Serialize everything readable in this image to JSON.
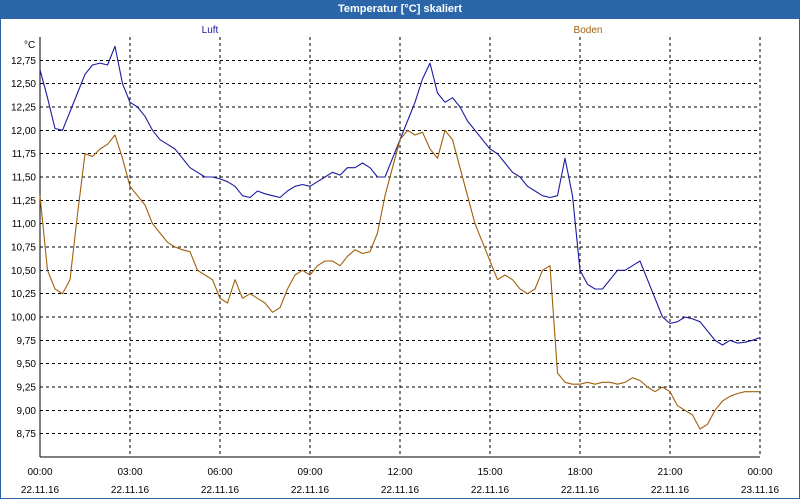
{
  "window": {
    "title": "Temperatur [°C] skaliert"
  },
  "chart_data": {
    "type": "line",
    "title": "Temperatur [°C] skaliert",
    "ylabel": "°C",
    "xlabel": "",
    "ylim": [
      8.5,
      13.0
    ],
    "xlim": [
      0,
      24
    ],
    "y_ticks": [
      8.75,
      9.0,
      9.25,
      9.5,
      9.75,
      10.0,
      10.25,
      10.5,
      10.75,
      11.0,
      11.25,
      11.5,
      11.75,
      12.0,
      12.25,
      12.5,
      12.75
    ],
    "y_tick_labels": [
      "8,75",
      "9,00",
      "9,25",
      "9,50",
      "9,75",
      "10,00",
      "10,25",
      "10,50",
      "10,75",
      "11,00",
      "11,25",
      "11,50",
      "11,75",
      "12,00",
      "12,25",
      "12,50",
      "12,75"
    ],
    "x_ticks": [
      {
        "x": 0,
        "time": "00:00",
        "date": "22.11.16"
      },
      {
        "x": 3,
        "time": "03:00",
        "date": "22.11.16"
      },
      {
        "x": 6,
        "time": "06:00",
        "date": "22.11.16"
      },
      {
        "x": 9,
        "time": "09:00",
        "date": "22.11.16"
      },
      {
        "x": 12,
        "time": "12:00",
        "date": "22.11.16"
      },
      {
        "x": 15,
        "time": "15:00",
        "date": "22.11.16"
      },
      {
        "x": 18,
        "time": "18:00",
        "date": "22.11.16"
      },
      {
        "x": 21,
        "time": "21:00",
        "date": "22.11.16"
      },
      {
        "x": 24,
        "time": "00:00",
        "date": "23.11.16"
      }
    ],
    "grid": true,
    "legend_placement": "top",
    "series": [
      {
        "name": "Luft",
        "color": "#1a1aa0",
        "x": [
          0,
          0.25,
          0.5,
          0.75,
          1,
          1.25,
          1.5,
          1.75,
          2,
          2.25,
          2.5,
          2.75,
          3,
          3.25,
          3.5,
          3.75,
          4,
          4.25,
          4.5,
          4.75,
          5,
          5.25,
          5.5,
          5.75,
          6,
          6.25,
          6.5,
          6.75,
          7,
          7.25,
          7.5,
          7.75,
          8,
          8.25,
          8.5,
          8.75,
          9,
          9.25,
          9.5,
          9.75,
          10,
          10.25,
          10.5,
          10.75,
          11,
          11.25,
          11.5,
          11.75,
          12,
          12.25,
          12.5,
          12.75,
          13,
          13.25,
          13.5,
          13.75,
          14,
          14.25,
          14.5,
          14.75,
          15,
          15.25,
          15.5,
          15.75,
          16,
          16.25,
          16.5,
          16.75,
          17,
          17.25,
          17.5,
          17.75,
          18,
          18.25,
          18.5,
          18.75,
          19,
          19.25,
          19.5,
          19.75,
          20,
          20.25,
          20.5,
          20.75,
          21,
          21.25,
          21.5,
          21.75,
          22,
          22.25,
          22.5,
          22.75,
          23,
          23.25,
          23.5,
          23.75,
          24
        ],
        "values": [
          12.65,
          12.35,
          12.02,
          12.0,
          12.2,
          12.4,
          12.6,
          12.7,
          12.72,
          12.7,
          12.9,
          12.5,
          12.3,
          12.25,
          12.15,
          12.0,
          11.9,
          11.85,
          11.8,
          11.7,
          11.6,
          11.55,
          11.5,
          11.5,
          11.48,
          11.45,
          11.4,
          11.3,
          11.28,
          11.35,
          11.32,
          11.3,
          11.28,
          11.35,
          11.4,
          11.42,
          11.4,
          11.45,
          11.5,
          11.55,
          11.52,
          11.6,
          11.6,
          11.65,
          11.6,
          11.5,
          11.5,
          11.7,
          11.9,
          12.1,
          12.3,
          12.55,
          12.72,
          12.4,
          12.3,
          12.35,
          12.25,
          12.1,
          12.0,
          11.9,
          11.8,
          11.75,
          11.65,
          11.55,
          11.5,
          11.4,
          11.35,
          11.3,
          11.28,
          11.3,
          11.7,
          11.3,
          10.5,
          10.35,
          10.3,
          10.3,
          10.4,
          10.5,
          10.5,
          10.55,
          10.6,
          10.4,
          10.2,
          10.0,
          9.93,
          9.95,
          10.0,
          9.98,
          9.95,
          9.85,
          9.75,
          9.7,
          9.75,
          9.72,
          9.73,
          9.75,
          9.78
        ],
        "series_color_note": ""
      },
      {
        "name": "Boden",
        "color": "#a0600a",
        "x": [
          0,
          0.25,
          0.5,
          0.75,
          1,
          1.25,
          1.5,
          1.75,
          2,
          2.25,
          2.5,
          2.75,
          3,
          3.25,
          3.5,
          3.75,
          4,
          4.25,
          4.5,
          4.75,
          5,
          5.25,
          5.5,
          5.75,
          6,
          6.25,
          6.5,
          6.75,
          7,
          7.25,
          7.5,
          7.75,
          8,
          8.25,
          8.5,
          8.75,
          9,
          9.25,
          9.5,
          9.75,
          10,
          10.25,
          10.5,
          10.75,
          11,
          11.25,
          11.5,
          11.75,
          12,
          12.25,
          12.5,
          12.75,
          13,
          13.25,
          13.5,
          13.75,
          14,
          14.25,
          14.5,
          14.75,
          15,
          15.25,
          15.5,
          15.75,
          16,
          16.25,
          16.5,
          16.75,
          17,
          17.25,
          17.5,
          17.75,
          18,
          18.25,
          18.5,
          18.75,
          19,
          19.25,
          19.5,
          19.75,
          20,
          20.25,
          20.5,
          20.75,
          21,
          21.25,
          21.5,
          21.75,
          22,
          22.25,
          22.5,
          22.75,
          23,
          23.25,
          23.5,
          23.75,
          24
        ],
        "values": [
          11.3,
          10.5,
          10.3,
          10.25,
          10.4,
          11.1,
          11.75,
          11.72,
          11.8,
          11.85,
          11.95,
          11.7,
          11.4,
          11.3,
          11.2,
          11.0,
          10.9,
          10.8,
          10.75,
          10.72,
          10.7,
          10.5,
          10.45,
          10.4,
          10.2,
          10.15,
          10.4,
          10.2,
          10.25,
          10.2,
          10.15,
          10.05,
          10.1,
          10.3,
          10.45,
          10.5,
          10.45,
          10.55,
          10.6,
          10.6,
          10.55,
          10.65,
          10.72,
          10.68,
          10.7,
          10.9,
          11.3,
          11.6,
          11.9,
          12.0,
          11.95,
          11.98,
          11.8,
          11.7,
          12.0,
          11.9,
          11.6,
          11.3,
          11.0,
          10.8,
          10.6,
          10.4,
          10.45,
          10.4,
          10.3,
          10.25,
          10.3,
          10.5,
          10.55,
          9.4,
          9.3,
          9.28,
          9.28,
          9.3,
          9.28,
          9.3,
          9.3,
          9.28,
          9.3,
          9.35,
          9.32,
          9.25,
          9.2,
          9.25,
          9.2,
          9.05,
          9.0,
          8.95,
          8.8,
          8.85,
          9.0,
          9.1,
          9.15,
          9.18,
          9.2,
          9.2,
          9.2
        ],
        "series_color_note": ""
      }
    ]
  }
}
